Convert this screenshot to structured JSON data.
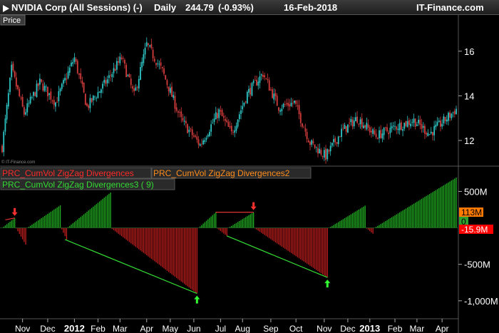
{
  "header": {
    "instrument": "NVIDIA Corp (All Sessions) (-)",
    "timeframe": "Daily",
    "price": "244.79",
    "change": "(-0.93%)",
    "date": "16-Feb-2018",
    "brand": "IT-Finance.com"
  },
  "price_panel": {
    "label": "Price",
    "watermark": "© IT-Finance.com"
  },
  "indicator_panel": {
    "legend": [
      {
        "text": "PRC_CumVol ZigZag Divergences",
        "color": "#ff2a2a"
      },
      {
        "text": "PRC_CumVol ZigZag Divergences2",
        "color": "#ff8c1a"
      },
      {
        "text": "PRC_CumVol ZigZag Divergences3 ( 9)",
        "color": "#33dd33"
      }
    ],
    "badges": [
      {
        "text": "113M",
        "bg": "#ff7a00",
        "fg": "#000000",
        "value": 113
      },
      {
        "text": "0",
        "bg": "#2ea02e",
        "fg": "#000000",
        "value": 0
      },
      {
        "text": "-15.9M",
        "bg": "#ff0000",
        "fg": "#ffffff",
        "value": -15.9
      }
    ]
  },
  "colors": {
    "bull": "#2ec4c4",
    "bear": "#d23c3c",
    "hist_pos": "#22b422",
    "hist_neg": "#c41e1e",
    "div_line_red": "#e03030",
    "div_line_green": "#33dd33",
    "arrow_up": "#33ff33",
    "arrow_down": "#ff3030"
  },
  "chart_data": [
    {
      "type": "candlestick",
      "title": "",
      "y_ticks": [
        "12",
        "14",
        "16"
      ],
      "ylim": [
        11.2,
        17.4
      ],
      "n_bars": 290,
      "anchors": [
        {
          "i": 0,
          "v": 11.7
        },
        {
          "i": 6,
          "v": 15.2
        },
        {
          "i": 14,
          "v": 13.2
        },
        {
          "i": 24,
          "v": 14.6
        },
        {
          "i": 34,
          "v": 13.7
        },
        {
          "i": 46,
          "v": 15.7
        },
        {
          "i": 54,
          "v": 13.5
        },
        {
          "i": 66,
          "v": 14.6
        },
        {
          "i": 76,
          "v": 15.7
        },
        {
          "i": 84,
          "v": 14.0
        },
        {
          "i": 92,
          "v": 16.3
        },
        {
          "i": 102,
          "v": 15.1
        },
        {
          "i": 114,
          "v": 12.9
        },
        {
          "i": 126,
          "v": 11.8
        },
        {
          "i": 138,
          "v": 13.3
        },
        {
          "i": 146,
          "v": 12.3
        },
        {
          "i": 156,
          "v": 14.1
        },
        {
          "i": 166,
          "v": 15.0
        },
        {
          "i": 176,
          "v": 13.5
        },
        {
          "i": 186,
          "v": 13.7
        },
        {
          "i": 196,
          "v": 11.9
        },
        {
          "i": 206,
          "v": 11.3
        },
        {
          "i": 216,
          "v": 12.4
        },
        {
          "i": 226,
          "v": 13.0
        },
        {
          "i": 238,
          "v": 12.2
        },
        {
          "i": 250,
          "v": 12.6
        },
        {
          "i": 262,
          "v": 12.9
        },
        {
          "i": 272,
          "v": 12.3
        },
        {
          "i": 280,
          "v": 12.8
        },
        {
          "i": 289,
          "v": 13.4
        }
      ]
    },
    {
      "type": "bar",
      "title": "",
      "y_ticks": [
        "500M",
        "0",
        "-500M",
        "-1,000M"
      ],
      "y_tick_values": [
        500,
        0,
        -500,
        -1000
      ],
      "ylim": [
        -1080,
        700
      ],
      "unit": "M",
      "n_bars": 290,
      "segments": [
        {
          "from": 0,
          "to": 8,
          "start": 0,
          "end": 135
        },
        {
          "from": 9,
          "to": 15,
          "start": -10,
          "end": -230
        },
        {
          "from": 16,
          "to": 37,
          "start": 0,
          "end": 310
        },
        {
          "from": 38,
          "to": 41,
          "start": -20,
          "end": -160
        },
        {
          "from": 42,
          "to": 69,
          "start": 10,
          "end": 485
        },
        {
          "from": 70,
          "to": 124,
          "start": -15,
          "end": -900
        },
        {
          "from": 125,
          "to": 136,
          "start": 0,
          "end": 215
        },
        {
          "from": 137,
          "to": 143,
          "start": -10,
          "end": -110
        },
        {
          "from": 144,
          "to": 160,
          "start": 0,
          "end": 215
        },
        {
          "from": 161,
          "to": 207,
          "start": -10,
          "end": -680
        },
        {
          "from": 208,
          "to": 231,
          "start": 0,
          "end": 305
        },
        {
          "from": 232,
          "to": 236,
          "start": -10,
          "end": -80
        },
        {
          "from": 237,
          "to": 289,
          "start": 0,
          "end": 690
        }
      ],
      "divergence_lines": [
        {
          "color": "red",
          "from": {
            "i": 2,
            "v": 110
          },
          "to": {
            "i": 8,
            "v": 135
          }
        },
        {
          "color": "red",
          "from": {
            "i": 136,
            "v": 215
          },
          "to": {
            "i": 160,
            "v": 215
          }
        },
        {
          "color": "green",
          "from": {
            "i": 40,
            "v": -160
          },
          "to": {
            "i": 124,
            "v": -900
          }
        },
        {
          "color": "green",
          "from": {
            "i": 143,
            "v": -110
          },
          "to": {
            "i": 207,
            "v": -680
          }
        }
      ],
      "arrows": [
        {
          "dir": "down",
          "i": 8,
          "v": 135
        },
        {
          "dir": "down",
          "i": 160,
          "v": 215
        },
        {
          "dir": "up",
          "i": 124,
          "v": -900
        },
        {
          "dir": "up",
          "i": 207,
          "v": -680
        }
      ]
    }
  ],
  "x_axis": {
    "ticks": [
      {
        "label": "Nov",
        "i": 13,
        "bold": false
      },
      {
        "label": "Dec",
        "i": 29,
        "bold": false
      },
      {
        "label": "2012",
        "i": 46,
        "bold": true
      },
      {
        "label": "Feb",
        "i": 61,
        "bold": false
      },
      {
        "label": "Mar",
        "i": 75,
        "bold": false
      },
      {
        "label": "Apr",
        "i": 92,
        "bold": false
      },
      {
        "label": "May",
        "i": 107,
        "bold": false
      },
      {
        "label": "Jun",
        "i": 122,
        "bold": false
      },
      {
        "label": "Jul",
        "i": 139,
        "bold": false
      },
      {
        "label": "Aug",
        "i": 153,
        "bold": false
      },
      {
        "label": "Sep",
        "i": 171,
        "bold": false
      },
      {
        "label": "Oct",
        "i": 187,
        "bold": false
      },
      {
        "label": "Nov",
        "i": 205,
        "bold": false
      },
      {
        "label": "Dec",
        "i": 220,
        "bold": false
      },
      {
        "label": "2013",
        "i": 234,
        "bold": true
      },
      {
        "label": "Feb",
        "i": 250,
        "bold": false
      },
      {
        "label": "Mar",
        "i": 264,
        "bold": false
      },
      {
        "label": "Apr",
        "i": 280,
        "bold": false
      }
    ]
  }
}
